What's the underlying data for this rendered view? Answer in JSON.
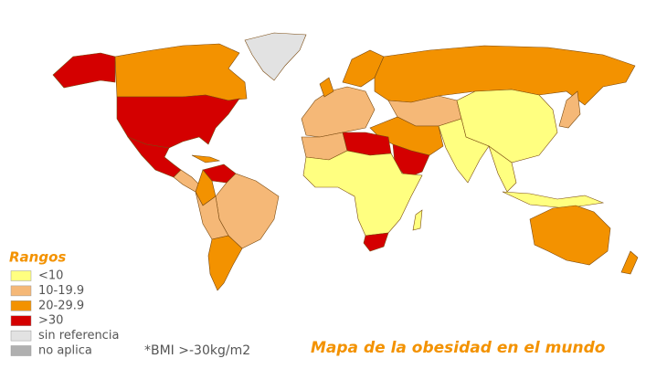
{
  "title": "Mapa de la obesidad en el mundo",
  "legend": {
    "title": "Rangos",
    "items": [
      {
        "label": "<10",
        "color": "#ffff80"
      },
      {
        "label": "10-19.9",
        "color": "#f5b877"
      },
      {
        "label": "20-29.9",
        "color": "#f39200"
      },
      {
        "label": ">30",
        "color": "#d40000"
      },
      {
        "label": "sin referencia",
        "color": "#e2e2e2"
      },
      {
        "label": "no aplica",
        "color": "#b0b0b0"
      }
    ]
  },
  "note": "*BMI >-30kg/m2"
}
